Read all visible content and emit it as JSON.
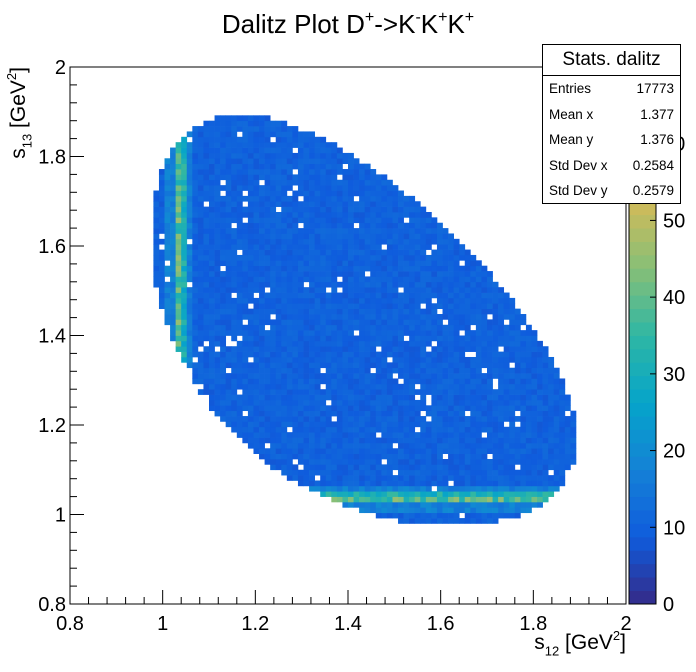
{
  "chart_data": {
    "type": "heatmap",
    "title_parts": [
      "Dalitz Plot D",
      "+",
      "->K",
      "-",
      "K",
      "+",
      "K",
      "+"
    ],
    "xlabel_parts": [
      "s",
      "12",
      " [GeV",
      "2",
      "]"
    ],
    "ylabel_parts": [
      "s",
      "13",
      " [GeV",
      "2",
      "]"
    ],
    "xlim": [
      0.8,
      2.0
    ],
    "ylim": [
      0.8,
      2.0
    ],
    "x_ticks": [
      "0.8",
      "1",
      "1.2",
      "1.4",
      "1.6",
      "1.8",
      "2"
    ],
    "y_ticks": [
      "0.8",
      "1",
      "1.2",
      "1.4",
      "1.6",
      "1.8",
      "2"
    ],
    "bins": [
      100,
      100
    ],
    "color_scale": {
      "min": 0,
      "max": 70,
      "ticks": [
        "0",
        "10",
        "20",
        "30",
        "40",
        "50",
        "60"
      ],
      "palette": [
        "#352a87",
        "#0f5cdd",
        "#1481d6",
        "#06a4ca",
        "#2eb7a4",
        "#87bf77",
        "#d1bb59",
        "#fec832",
        "#f9fb0e"
      ]
    },
    "region": {
      "description_free": true,
      "s12_range": [
        0.976,
        1.89
      ],
      "s13_range": [
        0.976,
        1.89
      ]
    },
    "features": {
      "phi_mass_squared": 1.039,
      "background_level": 8,
      "band_peak": 65
    },
    "seed": 12345,
    "grid": false
  },
  "stats": {
    "title": "Stats. dalitz",
    "rows": [
      {
        "label": "Entries",
        "value": "17773"
      },
      {
        "label": "Mean x",
        "value": "1.377"
      },
      {
        "label": "Mean y",
        "value": "1.376"
      },
      {
        "label": "Std Dev x",
        "value": "0.2584"
      },
      {
        "label": "Std Dev y",
        "value": "0.2579"
      }
    ]
  }
}
